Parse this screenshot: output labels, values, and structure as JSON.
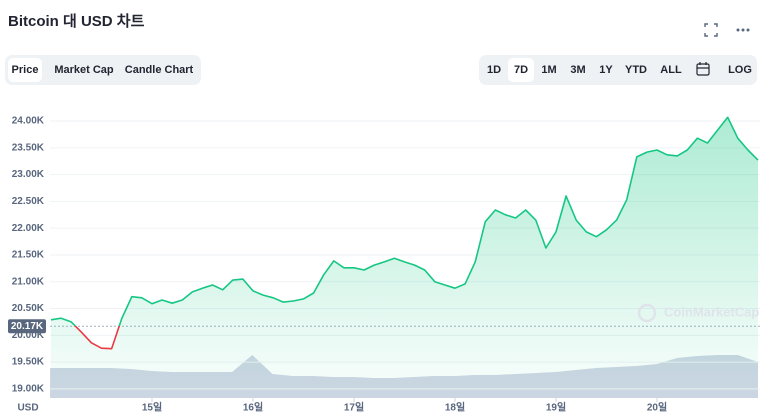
{
  "ui": {
    "tabs": [
      "Price",
      "Market Cap",
      "Candle Chart"
    ],
    "active_tab": 0,
    "ranges": [
      "1D",
      "7D",
      "1M",
      "3M",
      "1Y",
      "YTD",
      "ALL",
      "LOG"
    ],
    "active_range": 1
  },
  "chart_data": {
    "type": "line",
    "title": "Bitcoin 대 USD 차트",
    "x_label": "USD",
    "watermark": "CoinMarketCap",
    "xlim": [
      14,
      21
    ],
    "xticks": [
      {
        "value": 15,
        "label": "15일"
      },
      {
        "value": 16,
        "label": "16일"
      },
      {
        "value": 17,
        "label": "17일"
      },
      {
        "value": 18,
        "label": "18일"
      },
      {
        "value": 19,
        "label": "19일"
      },
      {
        "value": 20,
        "label": "20일"
      }
    ],
    "ylim": [
      18830,
      24400
    ],
    "yticks": [
      {
        "value": 19000,
        "label": "19.00K"
      },
      {
        "value": 19500,
        "label": "19.50K"
      },
      {
        "value": 20000,
        "label": "20.00K"
      },
      {
        "value": 20500,
        "label": "20.50K"
      },
      {
        "value": 21000,
        "label": "21.00K"
      },
      {
        "value": 21500,
        "label": "21.50K"
      },
      {
        "value": 22000,
        "label": "22.00K"
      },
      {
        "value": 22500,
        "label": "22.50K"
      },
      {
        "value": 23000,
        "label": "23.00K"
      },
      {
        "value": 23500,
        "label": "23.50K"
      },
      {
        "value": 24000,
        "label": "24.00K"
      }
    ],
    "grid": true,
    "reference": {
      "value": 20170,
      "label": "20.17K"
    },
    "up_color": "#16c784",
    "down_color": "#ea3943",
    "series": [
      {
        "name": "Price",
        "values": [
          20290,
          20320,
          20250,
          20060,
          19860,
          19760,
          19750,
          20310,
          20720,
          20700,
          20590,
          20660,
          20600,
          20660,
          20810,
          20880,
          20940,
          20850,
          21030,
          21050,
          20830,
          20750,
          20700,
          20620,
          20640,
          20680,
          20790,
          21130,
          21390,
          21260,
          21260,
          21220,
          21310,
          21370,
          21440,
          21370,
          21310,
          21220,
          21000,
          20940,
          20880,
          20960,
          21370,
          22120,
          22340,
          22250,
          22190,
          22340,
          22150,
          21630,
          21930,
          22600,
          22150,
          21930,
          21840,
          21970,
          22150,
          22530,
          23330,
          23420,
          23460,
          23370,
          23350,
          23460,
          23680,
          23590,
          23830,
          24070,
          23680,
          23460,
          23270
        ]
      }
    ],
    "volume": {
      "color": "#cfd6e4",
      "vlim": [
        0,
        100
      ],
      "values": [
        30,
        30,
        30,
        30,
        29,
        27,
        26,
        26,
        26,
        26,
        43,
        24,
        22,
        22,
        21,
        21,
        20,
        20,
        21,
        22,
        22,
        23,
        23,
        24,
        25,
        26,
        28,
        30,
        31,
        32,
        34,
        40,
        42,
        43,
        43,
        36
      ]
    }
  }
}
